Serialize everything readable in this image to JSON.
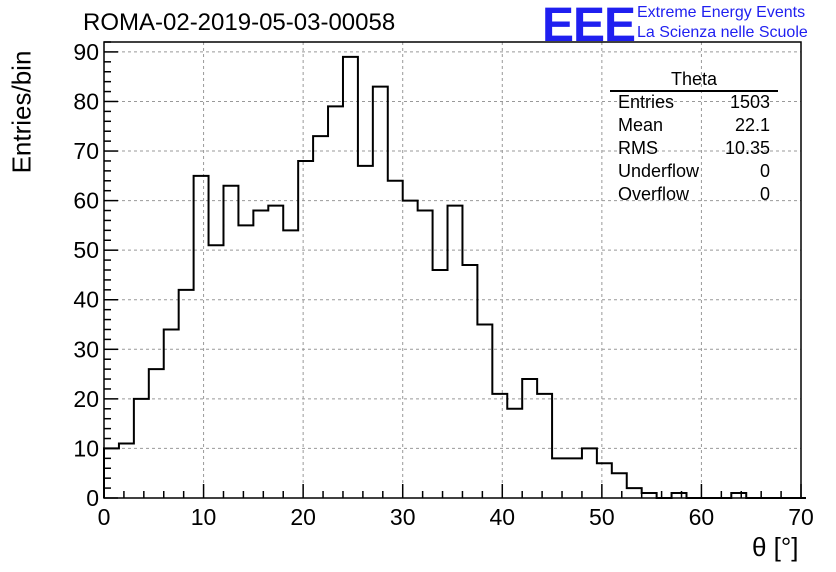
{
  "header": {
    "title": "ROMA-02-2019-05-03-00058",
    "logo": "EEE",
    "logo_line1": "Extreme Energy Events",
    "logo_line2": "La Scienza nelle Scuole"
  },
  "stats_box": {
    "title": "Theta",
    "rows": [
      {
        "label": "Entries",
        "value": "1503"
      },
      {
        "label": "Mean",
        "value": "22.1"
      },
      {
        "label": "RMS",
        "value": "10.35"
      },
      {
        "label": "Underflow",
        "value": "0"
      },
      {
        "label": "Overflow",
        "value": "0"
      }
    ]
  },
  "chart_data": {
    "type": "histogram",
    "title": "ROMA-02-2019-05-03-00058",
    "xlabel": "θ [°]",
    "ylabel": "Entries/bin",
    "xlim": [
      0,
      70
    ],
    "ylim": [
      0,
      92
    ],
    "bin_width": 1.5,
    "x_ticks": [
      0,
      10,
      20,
      30,
      40,
      50,
      60,
      70
    ],
    "y_ticks": [
      0,
      10,
      20,
      30,
      40,
      50,
      60,
      70,
      80,
      90
    ],
    "grid": true,
    "values": [
      10,
      11,
      20,
      26,
      34,
      42,
      65,
      51,
      63,
      55,
      58,
      59,
      54,
      68,
      73,
      79,
      89,
      67,
      83,
      64,
      60,
      58,
      46,
      59,
      47,
      35,
      21,
      18,
      24,
      21,
      8,
      8,
      10,
      7,
      5,
      2,
      1,
      0,
      1,
      0,
      0,
      0,
      1,
      0,
      0,
      0,
      0
    ]
  }
}
